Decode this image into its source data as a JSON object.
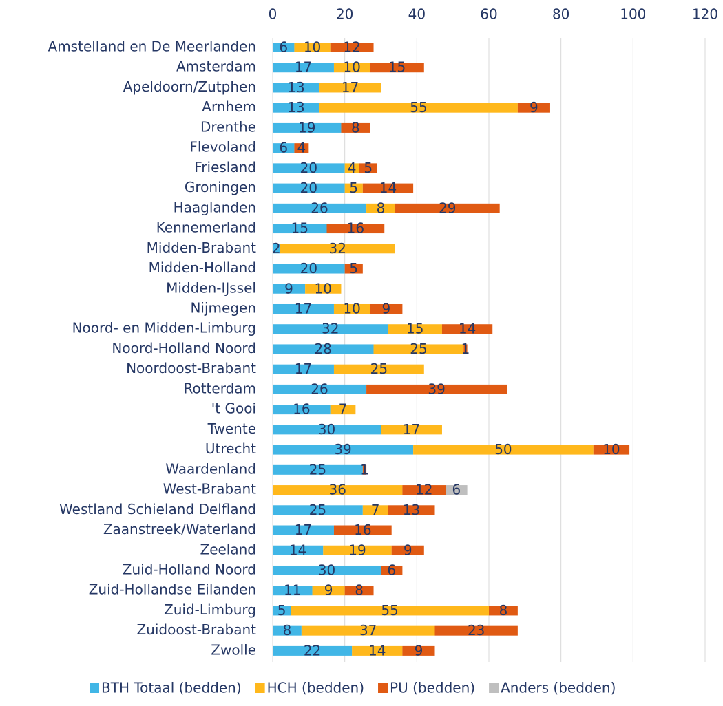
{
  "chart_data": {
    "type": "stacked_bar_horizontal",
    "categories": [
      "Amstelland en De Meerlanden",
      "Amsterdam",
      "Apeldoorn/Zutphen",
      "Arnhem",
      "Drenthe",
      "Flevoland",
      "Friesland",
      "Groningen",
      "Haaglanden",
      "Kennemerland",
      "Midden-Brabant",
      "Midden-Holland",
      "Midden-IJssel",
      "Nijmegen",
      "Noord- en Midden-Limburg",
      "Noord-Holland Noord",
      "Noordoost-Brabant",
      "Rotterdam",
      "'t Gooi",
      "Twente",
      "Utrecht",
      "Waardenland",
      "West-Brabant",
      "Westland Schieland Delfland",
      "Zaanstreek/Waterland",
      "Zeeland",
      "Zuid-Holland Noord",
      "Zuid-Hollandse Eilanden",
      "Zuid-Limburg",
      "Zuidoost-Brabant",
      "Zwolle"
    ],
    "series": [
      {
        "name": "BTH Totaal (bedden)",
        "color": "#41b6e6",
        "values": [
          6,
          17,
          13,
          13,
          19,
          6,
          20,
          20,
          26,
          15,
          2,
          20,
          9,
          17,
          32,
          28,
          17,
          26,
          16,
          30,
          39,
          25,
          null,
          25,
          17,
          14,
          30,
          11,
          5,
          8,
          22
        ]
      },
      {
        "name": "HCH (bedden)",
        "color": "#ffb81c",
        "values": [
          10,
          10,
          17,
          55,
          null,
          null,
          4,
          5,
          8,
          null,
          32,
          null,
          10,
          10,
          15,
          25,
          25,
          null,
          7,
          17,
          50,
          null,
          36,
          7,
          null,
          19,
          null,
          9,
          55,
          37,
          14
        ]
      },
      {
        "name": "PU (bedden)",
        "color": "#e05a13",
        "values": [
          12,
          15,
          null,
          9,
          8,
          4,
          5,
          14,
          29,
          16,
          null,
          5,
          null,
          9,
          14,
          1,
          null,
          39,
          null,
          null,
          10,
          1,
          12,
          13,
          16,
          9,
          6,
          8,
          8,
          23,
          9
        ]
      },
      {
        "name": "Anders (bedden)",
        "color": "#bfbfbf",
        "values": [
          null,
          null,
          null,
          null,
          null,
          null,
          null,
          null,
          null,
          null,
          null,
          null,
          null,
          null,
          null,
          null,
          null,
          null,
          null,
          null,
          null,
          null,
          6,
          null,
          null,
          null,
          null,
          null,
          null,
          null,
          null
        ]
      }
    ],
    "xlim": [
      0,
      120
    ],
    "xticks": [
      0,
      20,
      40,
      60,
      80,
      100,
      120
    ],
    "grid": true,
    "legend": "bottom"
  }
}
